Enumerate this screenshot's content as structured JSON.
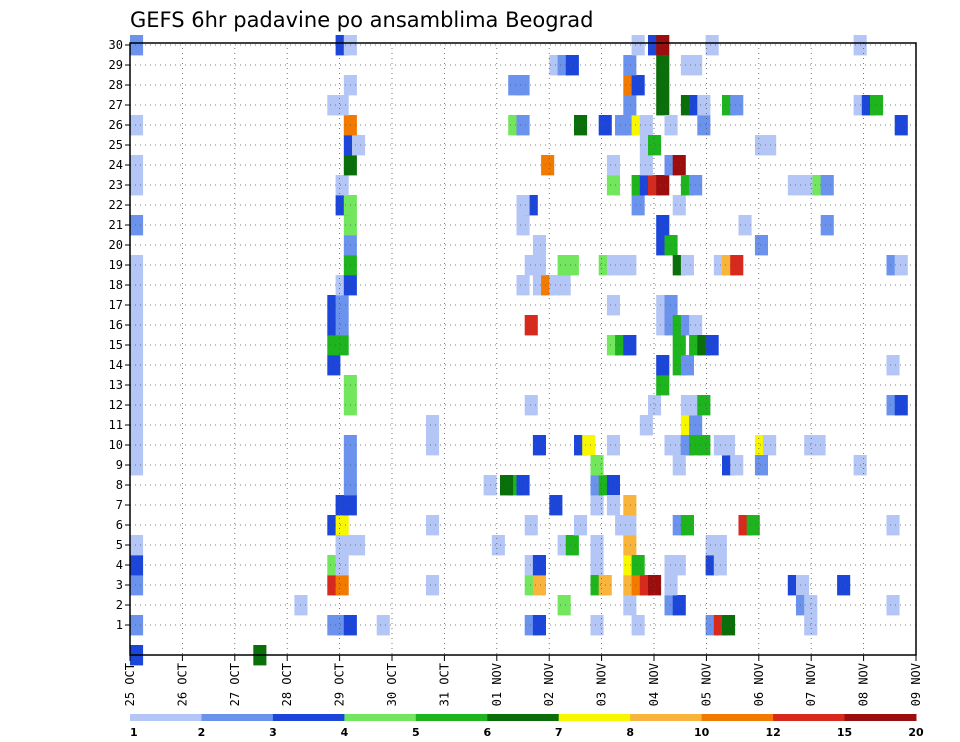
{
  "chart_data": {
    "type": "heatmap",
    "title": "GEFS 6hr padavine po ansamblima Beograd",
    "xlabel": "",
    "ylabel": "",
    "y_members": [
      1,
      30
    ],
    "x_time_range": [
      "25 OCT 00Z",
      "09 NOV 00Z"
    ],
    "x_step_hours": 6,
    "x_ticks": [
      "25 OCT",
      "26 OCT",
      "27 OCT",
      "28 OCT",
      "29 OCT",
      "30 OCT",
      "31 OCT",
      "01 NOV",
      "02 NOV",
      "03 NOV",
      "04 NOV",
      "05 NOV",
      "06 NOV",
      "07 NOV",
      "08 NOV",
      "09 NOV"
    ],
    "y_ticks": [
      "1",
      "2",
      "3",
      "4",
      "5",
      "6",
      "7",
      "8",
      "9",
      "10",
      "11",
      "12",
      "13",
      "14",
      "15",
      "16",
      "17",
      "18",
      "19",
      "20",
      "21",
      "22",
      "23",
      "24",
      "25",
      "26",
      "27",
      "28",
      "29",
      "30"
    ],
    "grid": true,
    "colorbar": {
      "levels": [
        "1",
        "2",
        "3",
        "4",
        "5",
        "6",
        "7",
        "8",
        "10",
        "12",
        "15",
        "20"
      ],
      "colors": [
        "#b3c6f5",
        "#6b93ee",
        "#1c46da",
        "#72e65c",
        "#1eb41e",
        "#0a6e0a",
        "#f7f700",
        "#f9b43c",
        "#f27a00",
        "#d72a1c",
        "#9c0d0d"
      ]
    },
    "cells": [
      [
        0,
        -0.5,
        2
      ],
      [
        0,
        1,
        1
      ],
      [
        0,
        3,
        1
      ],
      [
        0,
        4,
        2
      ],
      [
        0,
        5,
        0
      ],
      [
        0,
        9,
        0
      ],
      [
        0,
        10,
        0
      ],
      [
        0,
        11,
        0
      ],
      [
        0,
        12,
        0
      ],
      [
        0,
        13,
        0
      ],
      [
        0,
        14,
        0
      ],
      [
        0,
        15,
        0
      ],
      [
        0,
        16,
        0
      ],
      [
        0,
        17,
        0
      ],
      [
        0,
        18,
        0
      ],
      [
        0,
        19,
        0
      ],
      [
        0,
        21,
        1
      ],
      [
        0,
        23,
        0
      ],
      [
        0,
        24,
        0
      ],
      [
        0,
        26,
        0
      ],
      [
        0,
        30,
        1
      ],
      [
        15,
        -0.5,
        5
      ],
      [
        36,
        3,
        0
      ],
      [
        36,
        6,
        0
      ],
      [
        36,
        10,
        0
      ],
      [
        36,
        11,
        0
      ],
      [
        26,
        5,
        0
      ],
      [
        20,
        2,
        0
      ],
      [
        24,
        1,
        1
      ],
      [
        25,
        1,
        1
      ],
      [
        26,
        1,
        2
      ],
      [
        24,
        3,
        9
      ],
      [
        25,
        3,
        8
      ],
      [
        24,
        4,
        3
      ],
      [
        25,
        4,
        0
      ],
      [
        25,
        5,
        0
      ],
      [
        27,
        5,
        0
      ],
      [
        24,
        6,
        2
      ],
      [
        25,
        6,
        6
      ],
      [
        25,
        7,
        2
      ],
      [
        26,
        7,
        2
      ],
      [
        26,
        8,
        1
      ],
      [
        26,
        9,
        1
      ],
      [
        26,
        10,
        1
      ],
      [
        26,
        12,
        3
      ],
      [
        26,
        13,
        3
      ],
      [
        24,
        14,
        2
      ],
      [
        24,
        15,
        4
      ],
      [
        25,
        15,
        4
      ],
      [
        24,
        16,
        2
      ],
      [
        25,
        16,
        1
      ],
      [
        24,
        17,
        2
      ],
      [
        25,
        17,
        1
      ],
      [
        25,
        18,
        0
      ],
      [
        26,
        18,
        2
      ],
      [
        26,
        19,
        4
      ],
      [
        26,
        20,
        1
      ],
      [
        26,
        21,
        3
      ],
      [
        25,
        22,
        2
      ],
      [
        26,
        22,
        3
      ],
      [
        25,
        23,
        0
      ],
      [
        26,
        24,
        5
      ],
      [
        26,
        25,
        2
      ],
      [
        27,
        25,
        0
      ],
      [
        26,
        26,
        8
      ],
      [
        24,
        27,
        0
      ],
      [
        25,
        27,
        0
      ],
      [
        26,
        28,
        0
      ],
      [
        25,
        30,
        2
      ],
      [
        26,
        30,
        0
      ],
      [
        30,
        1,
        0
      ],
      [
        43,
        8,
        0
      ],
      [
        44,
        5,
        0
      ],
      [
        46,
        8,
        4
      ],
      [
        45,
        8,
        5
      ],
      [
        47,
        8,
        2
      ],
      [
        48,
        3,
        3
      ],
      [
        48,
        4,
        0
      ],
      [
        49,
        3,
        7
      ],
      [
        49,
        4,
        2
      ],
      [
        48,
        1,
        1
      ],
      [
        49,
        1,
        2
      ],
      [
        48,
        6,
        0
      ],
      [
        51,
        7,
        2
      ],
      [
        48,
        12,
        0
      ],
      [
        48,
        16,
        9
      ],
      [
        47,
        18,
        0
      ],
      [
        49,
        18,
        0
      ],
      [
        50,
        18,
        8
      ],
      [
        51,
        18,
        0
      ],
      [
        48,
        19,
        0
      ],
      [
        49,
        19,
        0
      ],
      [
        49,
        20,
        0
      ],
      [
        49,
        10,
        2
      ],
      [
        47,
        21,
        0
      ],
      [
        48,
        22,
        2
      ],
      [
        47,
        22,
        0
      ],
      [
        46,
        26,
        3
      ],
      [
        47,
        26,
        1
      ],
      [
        46,
        28,
        1
      ],
      [
        47,
        28,
        1
      ],
      [
        50,
        24,
        8
      ],
      [
        52,
        2,
        3
      ],
      [
        52,
        5,
        0
      ],
      [
        53,
        5,
        4
      ],
      [
        54,
        6,
        0
      ],
      [
        52,
        18,
        0
      ],
      [
        52,
        19,
        3
      ],
      [
        53,
        19,
        3
      ],
      [
        54,
        26,
        5
      ],
      [
        51,
        29,
        0
      ],
      [
        52,
        29,
        1
      ],
      [
        53,
        29,
        2
      ],
      [
        54,
        10,
        2
      ],
      [
        55,
        10,
        6
      ],
      [
        56,
        4,
        0
      ],
      [
        56,
        3,
        4
      ],
      [
        57,
        3,
        7
      ],
      [
        56,
        7,
        0
      ],
      [
        56,
        8,
        1
      ],
      [
        57,
        8,
        4
      ],
      [
        58,
        8,
        2
      ],
      [
        58,
        7,
        0
      ],
      [
        56,
        9,
        3
      ],
      [
        56,
        1,
        0
      ],
      [
        56,
        5,
        0
      ],
      [
        57,
        19,
        3
      ],
      [
        58,
        19,
        0
      ],
      [
        58,
        15,
        3
      ],
      [
        58,
        17,
        0
      ],
      [
        58,
        23,
        3
      ],
      [
        58,
        24,
        0
      ],
      [
        58,
        10,
        0
      ],
      [
        57,
        26,
        2
      ],
      [
        59,
        26,
        1
      ],
      [
        60,
        2,
        0
      ],
      [
        60,
        3,
        7
      ],
      [
        60,
        4,
        6
      ],
      [
        60,
        5,
        7
      ],
      [
        60,
        6,
        0
      ],
      [
        59,
        6,
        0
      ],
      [
        60,
        7,
        7
      ],
      [
        61,
        3,
        8
      ],
      [
        62,
        3,
        9
      ],
      [
        61,
        4,
        4
      ],
      [
        63,
        3,
        10
      ],
      [
        61,
        1,
        0
      ],
      [
        61,
        22,
        1
      ],
      [
        61,
        23,
        4
      ],
      [
        62,
        23,
        2
      ],
      [
        63,
        23,
        9
      ],
      [
        64,
        23,
        10
      ],
      [
        62,
        24,
        0
      ],
      [
        59,
        15,
        4
      ],
      [
        60,
        15,
        2
      ],
      [
        59,
        19,
        0
      ],
      [
        60,
        19,
        0
      ],
      [
        59,
        26,
        1
      ],
      [
        60,
        26,
        1
      ],
      [
        61,
        26,
        6
      ],
      [
        62,
        26,
        0
      ],
      [
        60,
        27,
        1
      ],
      [
        60,
        28,
        8
      ],
      [
        61,
        28,
        2
      ],
      [
        60,
        29,
        1
      ],
      [
        61,
        30,
        0
      ],
      [
        62,
        25,
        0
      ],
      [
        63,
        25,
        4
      ],
      [
        62,
        11,
        0
      ],
      [
        63,
        12,
        0
      ],
      [
        64,
        13,
        4
      ],
      [
        64,
        14,
        2
      ],
      [
        64,
        16,
        0
      ],
      [
        65,
        16,
        1
      ],
      [
        64,
        17,
        0
      ],
      [
        65,
        17,
        1
      ],
      [
        64,
        20,
        2
      ],
      [
        65,
        20,
        4
      ],
      [
        63,
        30,
        2
      ],
      [
        64,
        30,
        10
      ],
      [
        64,
        29,
        5
      ],
      [
        64,
        28,
        5
      ],
      [
        64,
        27,
        5
      ],
      [
        64,
        21,
        2
      ],
      [
        65,
        2,
        1
      ],
      [
        66,
        2,
        2
      ],
      [
        65,
        3,
        0
      ],
      [
        65,
        4,
        0
      ],
      [
        66,
        4,
        0
      ],
      [
        66,
        6,
        1
      ],
      [
        67,
        6,
        4
      ],
      [
        65,
        10,
        0
      ],
      [
        66,
        10,
        0
      ],
      [
        67,
        10,
        2
      ],
      [
        67,
        11,
        6
      ],
      [
        68,
        11,
        1
      ],
      [
        68,
        12,
        0
      ],
      [
        67,
        12,
        0
      ],
      [
        69,
        12,
        4
      ],
      [
        66,
        14,
        4
      ],
      [
        67,
        14,
        1
      ],
      [
        66,
        15,
        4
      ],
      [
        66,
        16,
        4
      ],
      [
        67,
        16,
        1
      ],
      [
        68,
        16,
        0
      ],
      [
        68,
        15,
        4
      ],
      [
        69,
        15,
        5
      ],
      [
        70,
        15,
        2
      ],
      [
        66,
        19,
        5
      ],
      [
        67,
        19,
        0
      ],
      [
        66,
        22,
        0
      ],
      [
        65,
        24,
        1
      ],
      [
        66,
        24,
        10
      ],
      [
        67,
        23,
        4
      ],
      [
        68,
        23,
        1
      ],
      [
        65,
        26,
        0
      ],
      [
        67,
        27,
        5
      ],
      [
        68,
        27,
        2
      ],
      [
        69,
        26,
        1
      ],
      [
        69,
        27,
        0
      ],
      [
        67,
        29,
        0
      ],
      [
        68,
        29,
        0
      ],
      [
        67,
        10,
        1
      ],
      [
        68,
        10,
        4
      ],
      [
        69,
        10,
        4
      ],
      [
        66,
        9,
        0
      ],
      [
        70,
        1,
        1
      ],
      [
        71,
        1,
        9
      ],
      [
        72,
        1,
        5
      ],
      [
        70,
        4,
        2
      ],
      [
        71,
        4,
        0
      ],
      [
        70,
        5,
        0
      ],
      [
        71,
        5,
        0
      ],
      [
        72,
        9,
        2
      ],
      [
        73,
        9,
        0
      ],
      [
        71,
        10,
        0
      ],
      [
        72,
        10,
        0
      ],
      [
        71,
        19,
        0
      ],
      [
        72,
        19,
        7
      ],
      [
        73,
        19,
        9
      ],
      [
        72,
        27,
        4
      ],
      [
        73,
        27,
        1
      ],
      [
        70,
        30,
        0
      ],
      [
        74,
        6,
        9
      ],
      [
        75,
        6,
        4
      ],
      [
        76,
        10,
        6
      ],
      [
        77,
        10,
        0
      ],
      [
        76,
        9,
        1
      ],
      [
        76,
        20,
        1
      ],
      [
        76,
        25,
        0
      ],
      [
        77,
        25,
        0
      ],
      [
        74,
        21,
        0
      ],
      [
        80,
        3,
        2
      ],
      [
        81,
        3,
        0
      ],
      [
        81,
        2,
        1
      ],
      [
        82,
        1,
        0
      ],
      [
        82,
        2,
        0
      ],
      [
        82,
        10,
        0
      ],
      [
        83,
        10,
        0
      ],
      [
        80,
        23,
        0
      ],
      [
        81,
        23,
        0
      ],
      [
        82,
        23,
        0
      ],
      [
        83,
        23,
        3
      ],
      [
        84,
        23,
        1
      ],
      [
        84,
        21,
        1
      ],
      [
        86,
        3,
        2
      ],
      [
        88,
        9,
        0
      ],
      [
        88,
        27,
        0
      ],
      [
        89,
        27,
        2
      ],
      [
        90,
        27,
        4
      ],
      [
        88,
        30,
        0
      ],
      [
        92,
        2,
        0
      ],
      [
        92,
        6,
        0
      ],
      [
        92,
        12,
        1
      ],
      [
        93,
        12,
        2
      ],
      [
        92,
        14,
        0
      ],
      [
        92,
        19,
        1
      ],
      [
        93,
        19,
        0
      ],
      [
        93,
        26,
        2
      ]
    ]
  }
}
